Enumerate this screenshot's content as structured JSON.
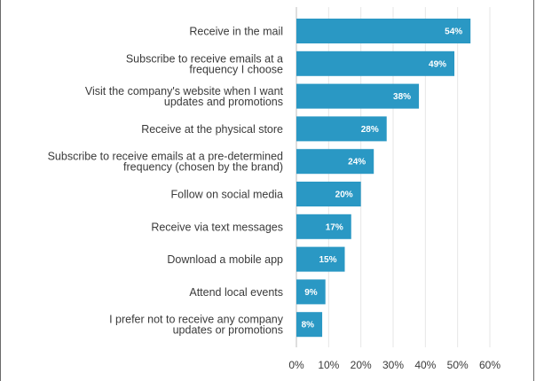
{
  "chart_data": {
    "type": "bar",
    "orientation": "horizontal",
    "title": "",
    "xlabel": "",
    "ylabel": "",
    "xlim": [
      0,
      60
    ],
    "xticks": [
      0,
      10,
      20,
      30,
      40,
      50,
      60
    ],
    "tick_format": "{v}%",
    "grid": true,
    "legend": "none",
    "bar_color": "#2a98c4",
    "categories": [
      [
        "Receive in the mail"
      ],
      [
        "Subscribe to receive emails at a",
        "frequency I choose"
      ],
      [
        "Visit the company's website when I want",
        "updates and promotions"
      ],
      [
        "Receive at the physical store"
      ],
      [
        "Subscribe to receive emails at a pre-determined",
        "frequency (chosen by the brand)"
      ],
      [
        "Follow on social media"
      ],
      [
        "Receive via text messages"
      ],
      [
        "Download a mobile app"
      ],
      [
        "Attend local events"
      ],
      [
        "I prefer not to receive any company",
        "updates or promotions"
      ]
    ],
    "values": [
      54,
      49,
      38,
      28,
      24,
      20,
      17,
      15,
      9,
      8
    ],
    "value_labels": [
      "54%",
      "49%",
      "38%",
      "28%",
      "24%",
      "20%",
      "17%",
      "15%",
      "9%",
      "8%"
    ]
  }
}
